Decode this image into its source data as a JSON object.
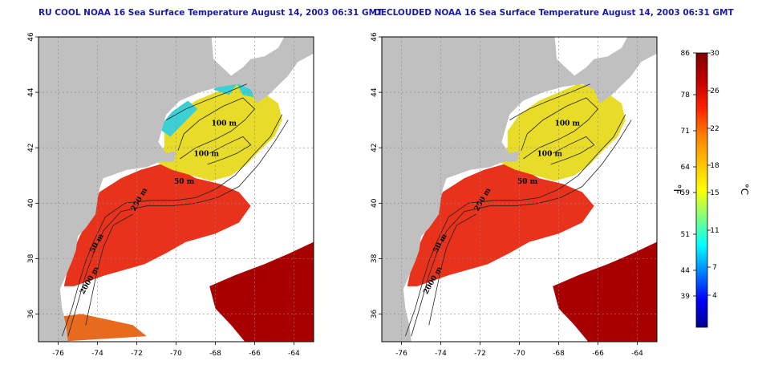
{
  "panels": [
    {
      "id": "left",
      "title": "RU COOL NOAA 16 Sea Surface Temperature August 14, 2003 06:31 GMT",
      "clouds": "white"
    },
    {
      "id": "right",
      "title": "DECLOUDED NOAA 16 Sea Surface Temperature August 14, 2003 06:31 GMT",
      "clouds": "none"
    }
  ],
  "axes": {
    "lon_ticks": [
      "-76",
      "-74",
      "-72",
      "-70",
      "-68",
      "-66",
      "-64"
    ],
    "lat_ticks": [
      "46",
      "44",
      "42",
      "40",
      "38",
      "36"
    ]
  },
  "contour_labels": [
    "100 m",
    "100 m",
    "50 m",
    "250 m",
    "50 m",
    "2000 m"
  ],
  "colorbar": {
    "fahrenheit_ticks": [
      "86",
      "78",
      "71",
      "64",
      "59",
      "51",
      "44",
      "39"
    ],
    "celsius_ticks": [
      "30",
      "26",
      "22",
      "18",
      "15",
      "11",
      "7",
      "4"
    ],
    "fahrenheit_unit": "°F",
    "celsius_unit": "°C",
    "colors": [
      "#00008f",
      "#0000ff",
      "#0080ff",
      "#00ffff",
      "#80ff80",
      "#ffff00",
      "#ffc000",
      "#ff8000",
      "#ff2000",
      "#c00000",
      "#800000"
    ]
  },
  "colors": {
    "land": "#c0c0c0",
    "cloud": "#ffffff",
    "title": "#1a1aa8",
    "warm": "#e8321c",
    "yellow": "#e8dc28",
    "cyan": "#3ccfd4",
    "darkred": "#a80000"
  }
}
